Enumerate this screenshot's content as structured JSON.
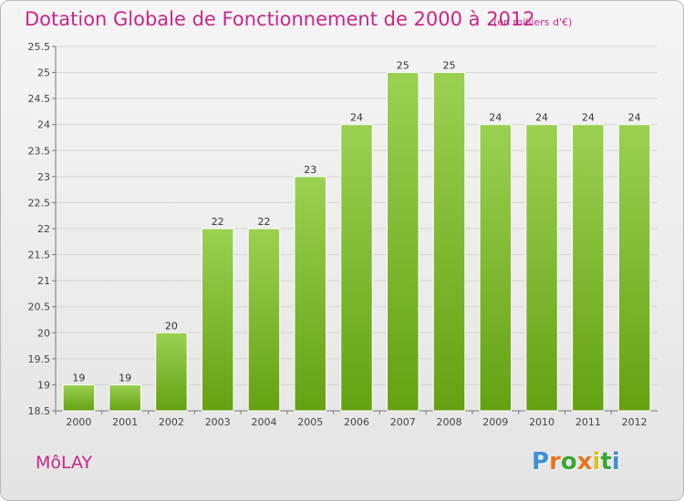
{
  "header": {
    "title": "Dotation Globale de Fonctionnement de 2000 à 2012",
    "unit": "(en milliers d'€)"
  },
  "footer": {
    "city": "MôLAY",
    "brand": "Proxiti"
  },
  "colors": {
    "title": "#c7268a",
    "bar_top": "#9bd152",
    "bar_bottom": "#64a112",
    "grid": "#d4d4d4"
  },
  "chart_data": {
    "type": "bar",
    "title": "Dotation Globale de Fonctionnement de 2000 à 2012",
    "subtitle": "(en milliers d'€)",
    "xlabel": "",
    "ylabel": "",
    "categories": [
      "2000",
      "2001",
      "2002",
      "2003",
      "2004",
      "2005",
      "2006",
      "2007",
      "2008",
      "2009",
      "2010",
      "2011",
      "2012"
    ],
    "values": [
      19,
      19,
      20,
      22,
      22,
      23,
      24,
      25,
      25,
      24,
      24,
      24,
      24
    ],
    "value_labels": [
      "19",
      "19",
      "20",
      "22",
      "22",
      "23",
      "24",
      "25",
      "25",
      "24",
      "24",
      "24",
      "24"
    ],
    "ylim": [
      18.5,
      25.5
    ],
    "yticks": [
      18.5,
      19,
      19.5,
      20,
      20.5,
      21,
      21.5,
      22,
      22.5,
      23,
      23.5,
      24,
      24.5,
      25,
      25.5
    ],
    "ytick_labels": [
      "18.5",
      "19",
      "19.5",
      "20",
      "20.5",
      "21",
      "21.5",
      "22",
      "22.5",
      "23",
      "23.5",
      "24",
      "24.5",
      "25",
      "25.5"
    ],
    "grid": true,
    "legend": "none"
  }
}
